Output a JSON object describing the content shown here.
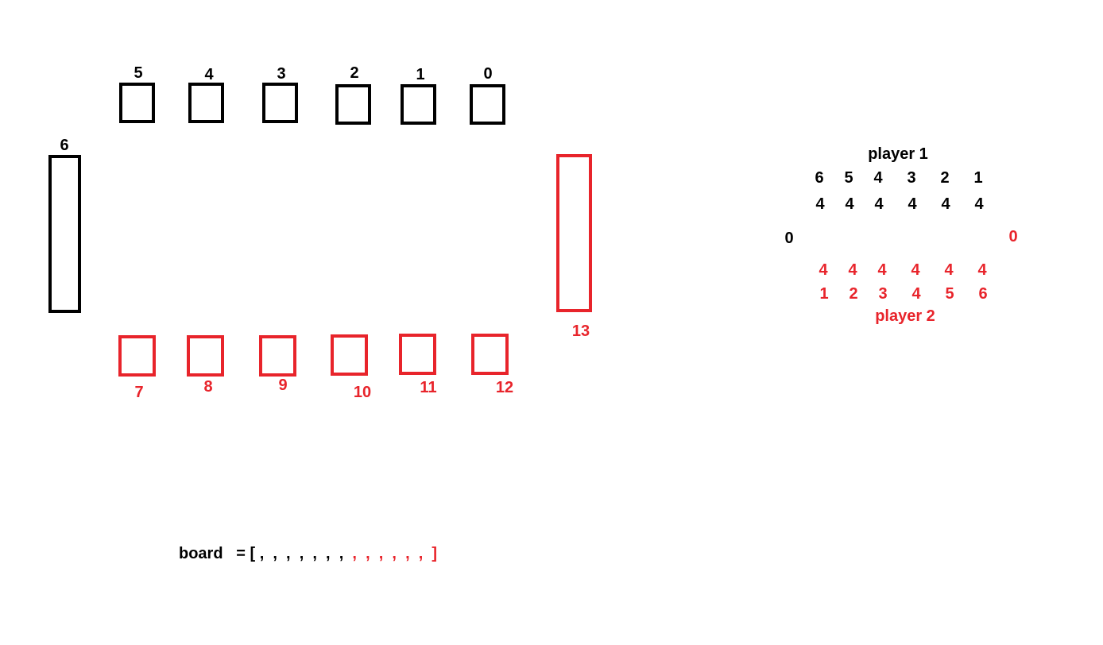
{
  "colors": {
    "player1": "#000000",
    "player2": "#e8242b",
    "background": "#ffffff"
  },
  "diagram": {
    "top_pits": [
      "5",
      "4",
      "3",
      "2",
      "1",
      "0"
    ],
    "left_store": "6",
    "right_store": "13",
    "bottom_pits": [
      "7",
      "8",
      "9",
      "10",
      "11",
      "12"
    ]
  },
  "summary": {
    "player1_label": "player 1",
    "player1_pit_numbers": [
      "6",
      "5",
      "4",
      "3",
      "2",
      "1"
    ],
    "player1_counts": [
      "4",
      "4",
      "4",
      "4",
      "4",
      "4"
    ],
    "player1_store": "0",
    "player2_store": "0",
    "player2_counts": [
      "4",
      "4",
      "4",
      "4",
      "4",
      "4"
    ],
    "player2_pit_numbers": [
      "1",
      "2",
      "3",
      "4",
      "5",
      "6"
    ],
    "player2_label": "player 2"
  },
  "board_line": {
    "label": "board",
    "equals_open": "= [",
    "black_commas": " ,  ,  ,  ,  ,  ,  ,",
    "red_commas": "  ,  ,  ,  ,  ,  ,  ]"
  }
}
